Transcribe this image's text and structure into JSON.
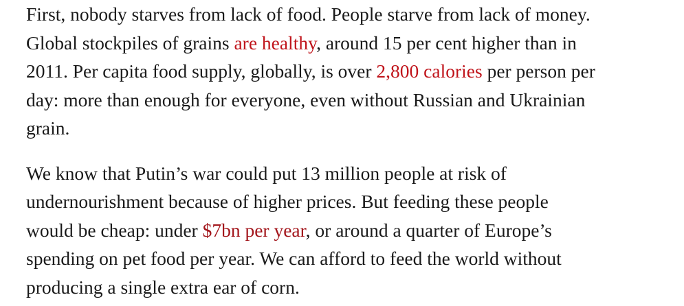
{
  "article": {
    "paragraph_1": {
      "line_1": "First, nobody starves from lack of food. People starve from lack of money.",
      "line_2_before": "Global stockpiles of grains ",
      "line_2_link": "are healthy",
      "line_2_after": ", around 15 per cent higher than in",
      "line_3_before": "2011. Per capita food supply, globally, is over ",
      "line_3_link": "2,800 calories",
      "line_3_after": " per person per",
      "line_4": "day: more than enough for everyone, even without Russian and Ukrainian",
      "line_5": "grain."
    },
    "paragraph_2": {
      "line_1": "We know that Putin’s war could put 13 million people at risk of",
      "line_2": "undernourishment because of higher prices. But feeding these people",
      "line_3_before": "would be cheap: under ",
      "line_3_link": "$7bn per year",
      "line_3_after": ", or around a quarter of Europe’s",
      "line_4": "spending on pet food per year. We can afford to feed the world without",
      "line_5": "producing a single extra ear of corn."
    }
  },
  "colors": {
    "text": "#1a1a1a",
    "link": "#c0141b",
    "background": "#ffffff"
  }
}
